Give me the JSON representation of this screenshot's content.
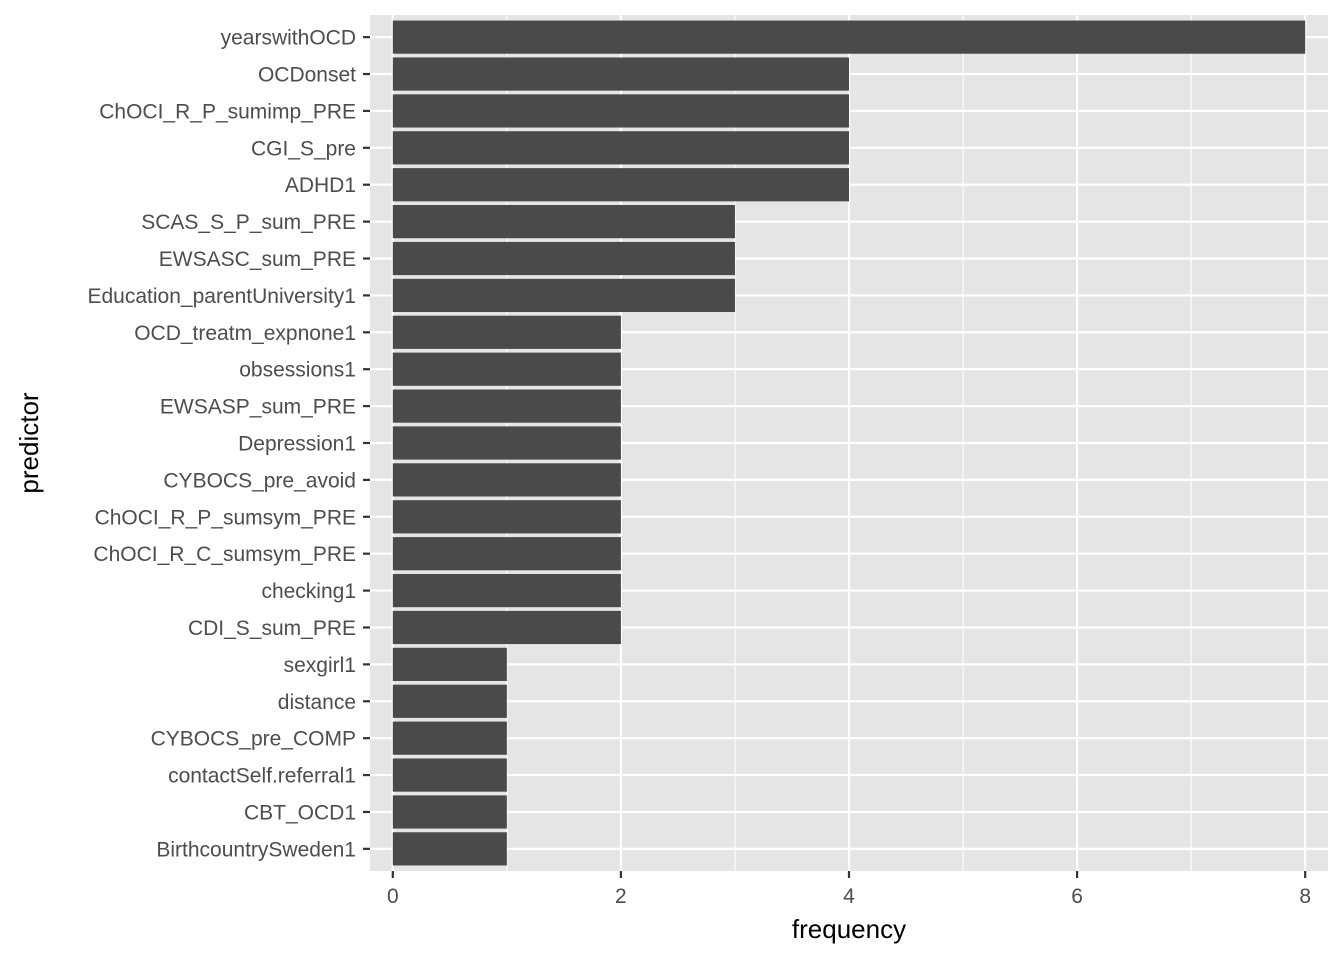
{
  "chart_data": {
    "type": "bar",
    "orientation": "horizontal",
    "xlabel": "frequency",
    "ylabel": "predictor",
    "xlim": [
      -0.2,
      8.2
    ],
    "x_ticks": [
      0,
      2,
      4,
      6,
      8
    ],
    "grid": true,
    "categories": [
      "yearswithOCD",
      "OCDonset",
      "ChOCI_R_P_sumimp_PRE",
      "CGI_S_pre",
      "ADHD1",
      "SCAS_S_P_sum_PRE",
      "EWSASC_sum_PRE",
      "Education_parentUniversity1",
      "OCD_treatm_expnone1",
      "obsessions1",
      "EWSASP_sum_PRE",
      "Depression1",
      "CYBOCS_pre_avoid",
      "ChOCI_R_P_sumsym_PRE",
      "ChOCI_R_C_sumsym_PRE",
      "checking1",
      "CDI_S_sum_PRE",
      "sexgirl1",
      "distance",
      "CYBOCS_pre_COMP",
      "contactSelf.referral1",
      "CBT_OCD1",
      "BirthcountrySweden1"
    ],
    "values": [
      8,
      4,
      4,
      4,
      4,
      3,
      3,
      3,
      2,
      2,
      2,
      2,
      2,
      2,
      2,
      2,
      2,
      1,
      1,
      1,
      1,
      1,
      1
    ],
    "colors": {
      "bar": "#4a4a4a",
      "panel": "#e5e5e5",
      "grid": "#ffffff"
    }
  }
}
